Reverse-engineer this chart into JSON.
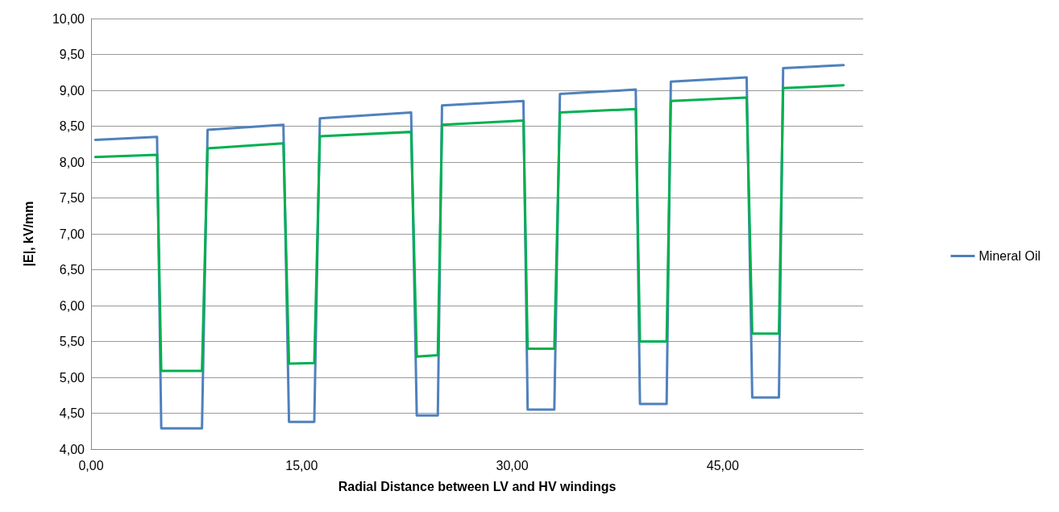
{
  "chart_data": {
    "type": "line",
    "xlabel": "Radial Distance between LV and HV windings",
    "ylabel": "|E|, kV/mm",
    "x": [
      0.3,
      4.7,
      5.0,
      7.9,
      8.3,
      13.7,
      14.1,
      15.9,
      16.3,
      22.8,
      23.2,
      24.7,
      25.0,
      30.8,
      31.1,
      33.0,
      33.4,
      38.8,
      39.1,
      41.0,
      41.3,
      46.7,
      47.1,
      49.0,
      49.3,
      53.6
    ],
    "series": [
      {
        "name": "Mineral Oil",
        "color": "#4f81bd",
        "values": [
          8.31,
          8.35,
          4.29,
          4.29,
          8.45,
          8.52,
          4.38,
          4.38,
          8.61,
          8.69,
          4.47,
          4.47,
          8.79,
          8.85,
          4.55,
          4.55,
          8.95,
          9.01,
          4.63,
          4.63,
          9.12,
          9.18,
          4.72,
          4.72,
          9.31,
          9.35
        ]
      },
      {
        "color": "#00b050",
        "values": [
          8.07,
          8.1,
          5.09,
          5.09,
          8.19,
          8.26,
          5.19,
          5.2,
          8.36,
          8.42,
          5.29,
          5.31,
          8.52,
          8.58,
          5.4,
          5.4,
          8.69,
          8.74,
          5.5,
          5.5,
          8.85,
          8.9,
          5.61,
          5.61,
          9.03,
          9.07
        ]
      }
    ],
    "xlim": [
      0,
      55
    ],
    "xticks": [
      {
        "value": 0,
        "label": "0,00"
      },
      {
        "value": 15,
        "label": "15,00"
      },
      {
        "value": 30,
        "label": "30,00"
      },
      {
        "value": 45,
        "label": "45,00"
      }
    ],
    "ylim": [
      4,
      10
    ],
    "yticks": [
      {
        "value": 4,
        "label": "4,00"
      },
      {
        "value": 4.5,
        "label": "4,50"
      },
      {
        "value": 5,
        "label": "5,00"
      },
      {
        "value": 5.5,
        "label": "5,50"
      },
      {
        "value": 6,
        "label": "6,00"
      },
      {
        "value": 6.5,
        "label": "6,50"
      },
      {
        "value": 7,
        "label": "7,00"
      },
      {
        "value": 7.5,
        "label": "7,50"
      },
      {
        "value": 8,
        "label": "8,00"
      },
      {
        "value": 8.5,
        "label": "8,50"
      },
      {
        "value": 9,
        "label": "9,00"
      },
      {
        "value": 9.5,
        "label": "9,50"
      },
      {
        "value": 10,
        "label": "10,00"
      }
    ],
    "grid": "y",
    "legend": "right",
    "marker": "none",
    "line_style": "solid"
  }
}
